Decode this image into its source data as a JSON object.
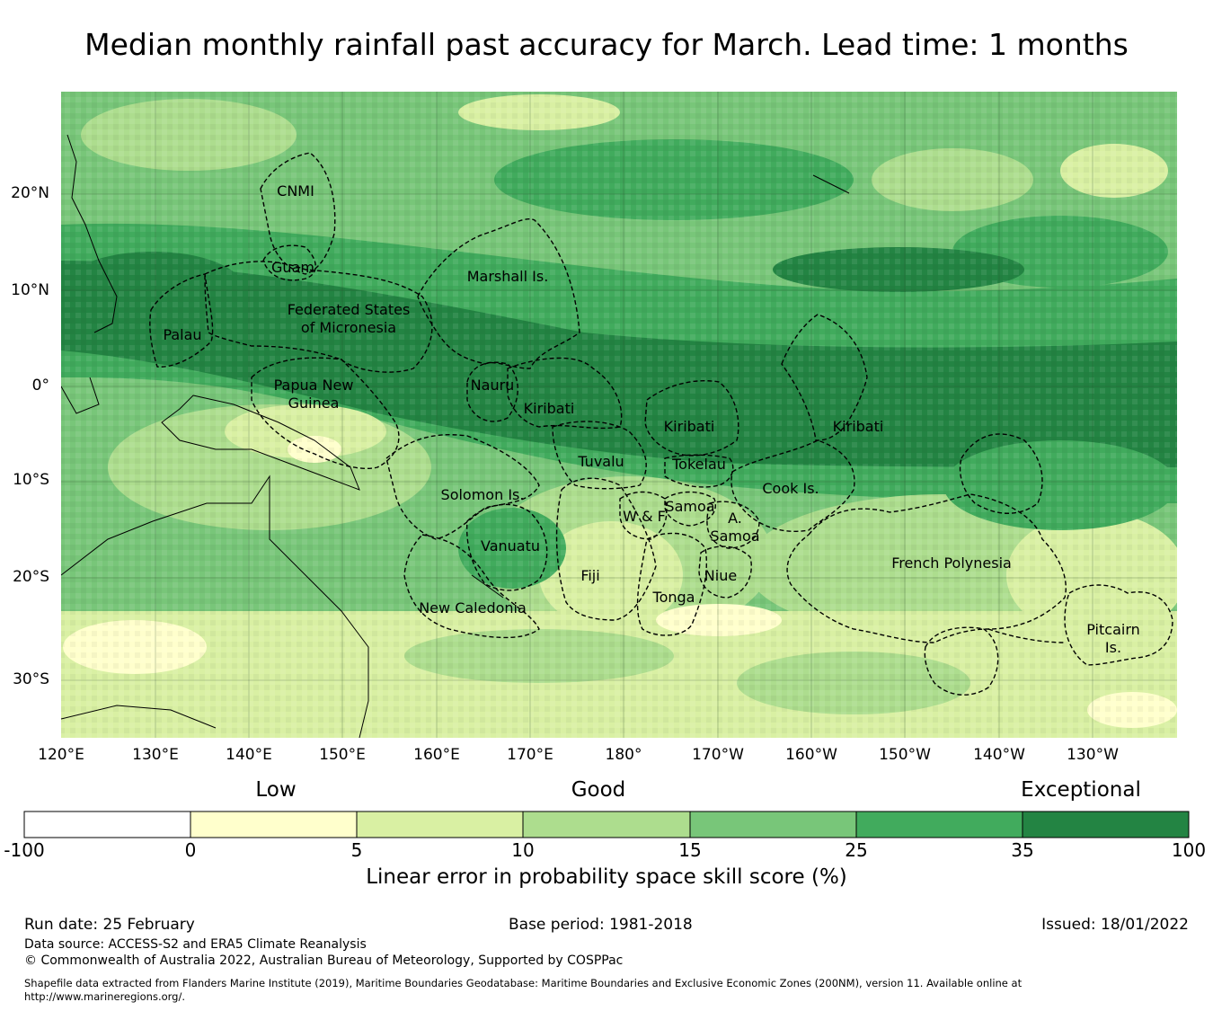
{
  "title": "Median monthly rainfall past accuracy for March. Lead time: 1 months",
  "map": {
    "lat_ticks": [
      "20°N",
      "10°N",
      "0°",
      "10°S",
      "20°S",
      "30°S"
    ],
    "lon_ticks": [
      "120°E",
      "130°E",
      "140°E",
      "150°E",
      "160°E",
      "170°E",
      "180°",
      "170°W",
      "160°W",
      "150°W",
      "140°W",
      "130°W"
    ],
    "regions": [
      {
        "name": "CNMI"
      },
      {
        "name": "Guam"
      },
      {
        "name": "Marshall Is."
      },
      {
        "name": "Federated States of Micronesia",
        "lines": [
          "Federated States",
          "of Micronesia"
        ]
      },
      {
        "name": "Palau"
      },
      {
        "name": "Papua New Guinea",
        "lines": [
          "Papua New",
          "Guinea"
        ]
      },
      {
        "name": "Nauru"
      },
      {
        "name": "Kiribati (Gilbert)",
        "lines": [
          "Kiribati"
        ]
      },
      {
        "name": "Kiribati (Phoenix)",
        "lines": [
          "Kiribati"
        ]
      },
      {
        "name": "Kiribati (Line)",
        "lines": [
          "Kiribati"
        ]
      },
      {
        "name": "Tuvalu"
      },
      {
        "name": "Tokelau"
      },
      {
        "name": "Solomon Is."
      },
      {
        "name": "Samoa"
      },
      {
        "name": "W & F"
      },
      {
        "name": "A. Samoa",
        "lines": [
          "A.",
          "Samoa"
        ]
      },
      {
        "name": "Cook Is."
      },
      {
        "name": "Vanuatu"
      },
      {
        "name": "Fiji"
      },
      {
        "name": "Niue"
      },
      {
        "name": "Tonga"
      },
      {
        "name": "New Caledonia"
      },
      {
        "name": "French Polynesia"
      },
      {
        "name": "Pitcairn Is.",
        "lines": [
          "Pitcairn",
          "Is."
        ]
      }
    ],
    "colors": {
      "bin_neg": "#ffffff",
      "bin_0_5": "#ffffcc",
      "bin_5_10": "#d9f0a3",
      "bin_10_15": "#addd8e",
      "bin_15_25": "#78c679",
      "bin_25_35": "#41ab5d",
      "bin_35_100": "#238443"
    }
  },
  "colorbar": {
    "categories": [
      "Low",
      "Good",
      "Exceptional"
    ],
    "bounds": [
      "-100",
      "0",
      "5",
      "10",
      "15",
      "25",
      "35",
      "100"
    ],
    "colors": [
      "#ffffff",
      "#ffffcc",
      "#d9f0a3",
      "#addd8e",
      "#78c679",
      "#41ab5d",
      "#238443"
    ],
    "label": "Linear error in probability space skill score (%)"
  },
  "footer": {
    "run_date": "Run date: 25 February",
    "base_period": "Base period: 1981-2018",
    "issued": "Issued: 18/01/2022",
    "data_source": "Data source: ACCESS-S2 and ERA5 Climate Reanalysis",
    "copyright": "© Commonwealth of Australia 2022, Australian Bureau of Meteorology, Supported by COSPPac",
    "shapefile": "Shapefile data extracted from Flanders Marine Institute (2019), Maritime Boundaries Geodatabase: Maritime Boundaries and Exclusive Economic Zones (200NM), version 11. Available online at http://www.marineregions.org/."
  }
}
